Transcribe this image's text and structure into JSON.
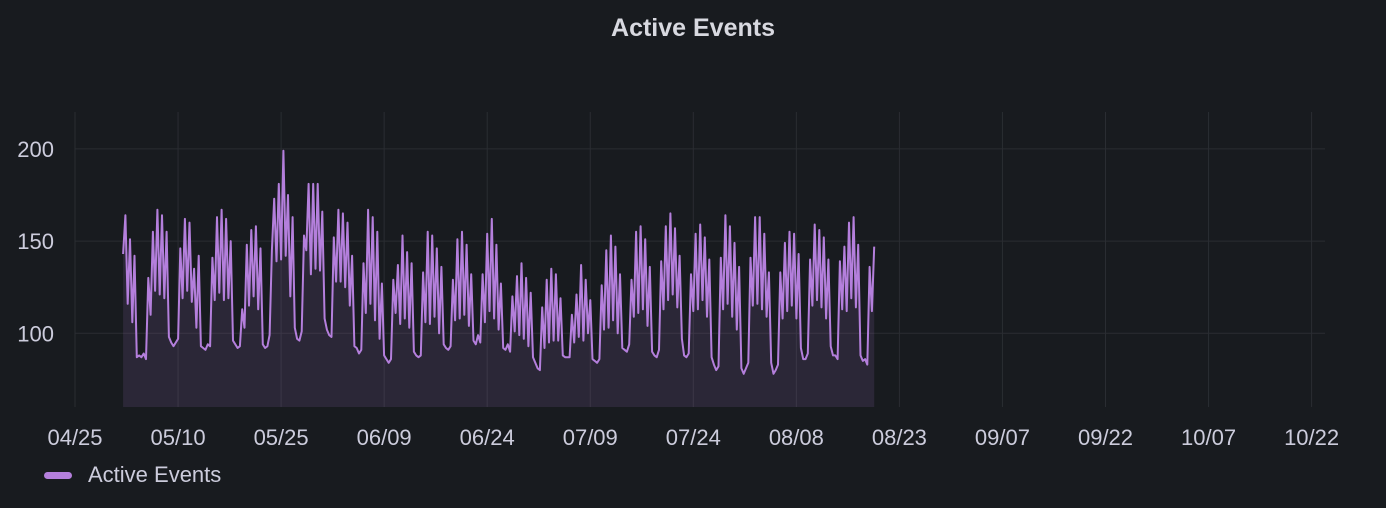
{
  "panel": {
    "title": "Active Events"
  },
  "colors": {
    "series": "#b47fdc",
    "fill": "rgba(180,127,220,0.13)",
    "grid": "#2a2d32",
    "background": "#181b1f"
  },
  "legend": {
    "items": [
      {
        "label": "Active Events"
      }
    ]
  },
  "chart_data": {
    "type": "line",
    "title": "Active Events",
    "start_date": "2024-05-02",
    "end_date": "2024-10-23",
    "xlabel": "",
    "ylabel": "",
    "ylim": [
      60,
      220
    ],
    "y_ticks": [
      100,
      150,
      200
    ],
    "x_ticks": [
      "04/25",
      "05/10",
      "05/25",
      "06/09",
      "06/24",
      "07/09",
      "07/24",
      "08/08",
      "08/23",
      "09/07",
      "09/22",
      "10/07",
      "10/22"
    ],
    "grid": true,
    "legend_position": "bottom-left",
    "series": [
      {
        "name": "Active Events",
        "step_hours": 8,
        "values": [
          143,
          164,
          116,
          151,
          106,
          142,
          87,
          88,
          87,
          89,
          86,
          130,
          110,
          155,
          123,
          167,
          121,
          164,
          119,
          155,
          98,
          95,
          93,
          95,
          97,
          146,
          119,
          162,
          123,
          160,
          117,
          135,
          103,
          142,
          93,
          92,
          91,
          94,
          93,
          141,
          118,
          163,
          122,
          167,
          118,
          162,
          119,
          150,
          96,
          94,
          92,
          93,
          113,
          103,
          148,
          115,
          156,
          120,
          158,
          113,
          146,
          94,
          92,
          93,
          99,
          145,
          173,
          139,
          181,
          140,
          199,
          142,
          175,
          120,
          163,
          103,
          97,
          96,
          101,
          153,
          145,
          181,
          132,
          181,
          135,
          181,
          134,
          166,
          108,
          102,
          99,
          98,
          152,
          128,
          167,
          128,
          165,
          125,
          160,
          115,
          142,
          93,
          92,
          89,
          91,
          138,
          111,
          167,
          116,
          163,
          107,
          155,
          97,
          127,
          88,
          86,
          84,
          86,
          129,
          111,
          137,
          105,
          153,
          108,
          144,
          103,
          138,
          90,
          88,
          87,
          88,
          133,
          106,
          155,
          105,
          153,
          109,
          146,
          100,
          136,
          94,
          92,
          91,
          93,
          129,
          107,
          151,
          108,
          155,
          110,
          148,
          104,
          132,
          96,
          94,
          99,
          95,
          132,
          106,
          154,
          112,
          162,
          108,
          148,
          102,
          127,
          92,
          91,
          94,
          90,
          120,
          101,
          131,
          99,
          138,
          97,
          130,
          93,
          122,
          87,
          84,
          81,
          80,
          114,
          92,
          129,
          95,
          135,
          96,
          132,
          96,
          119,
          88,
          87,
          87,
          87,
          110,
          95,
          121,
          98,
          137,
          96,
          129,
          100,
          118,
          86,
          85,
          84,
          86,
          126,
          102,
          145,
          103,
          153,
          107,
          147,
          100,
          132,
          92,
          91,
          90,
          94,
          129,
          109,
          155,
          111,
          158,
          113,
          151,
          104,
          136,
          90,
          88,
          87,
          91,
          139,
          113,
          158,
          118,
          165,
          121,
          157,
          114,
          142,
          97,
          88,
          87,
          89,
          132,
          112,
          154,
          113,
          159,
          118,
          152,
          109,
          140,
          87,
          83,
          80,
          82,
          141,
          113,
          164,
          116,
          158,
          109,
          149,
          102,
          136,
          81,
          78,
          81,
          84,
          141,
          115,
          163,
          116,
          163,
          113,
          154,
          109,
          133,
          84,
          78,
          80,
          83,
          133,
          108,
          149,
          112,
          155,
          115,
          154,
          108,
          143,
          92,
          86,
          86,
          89,
          140,
          115,
          159,
          118,
          156,
          114,
          152,
          108,
          140,
          93,
          88,
          88,
          86,
          139,
          113,
          147,
          112,
          160,
          119,
          163,
          114,
          148,
          88,
          85,
          86,
          83,
          136,
          112,
          147
        ]
      }
    ]
  }
}
